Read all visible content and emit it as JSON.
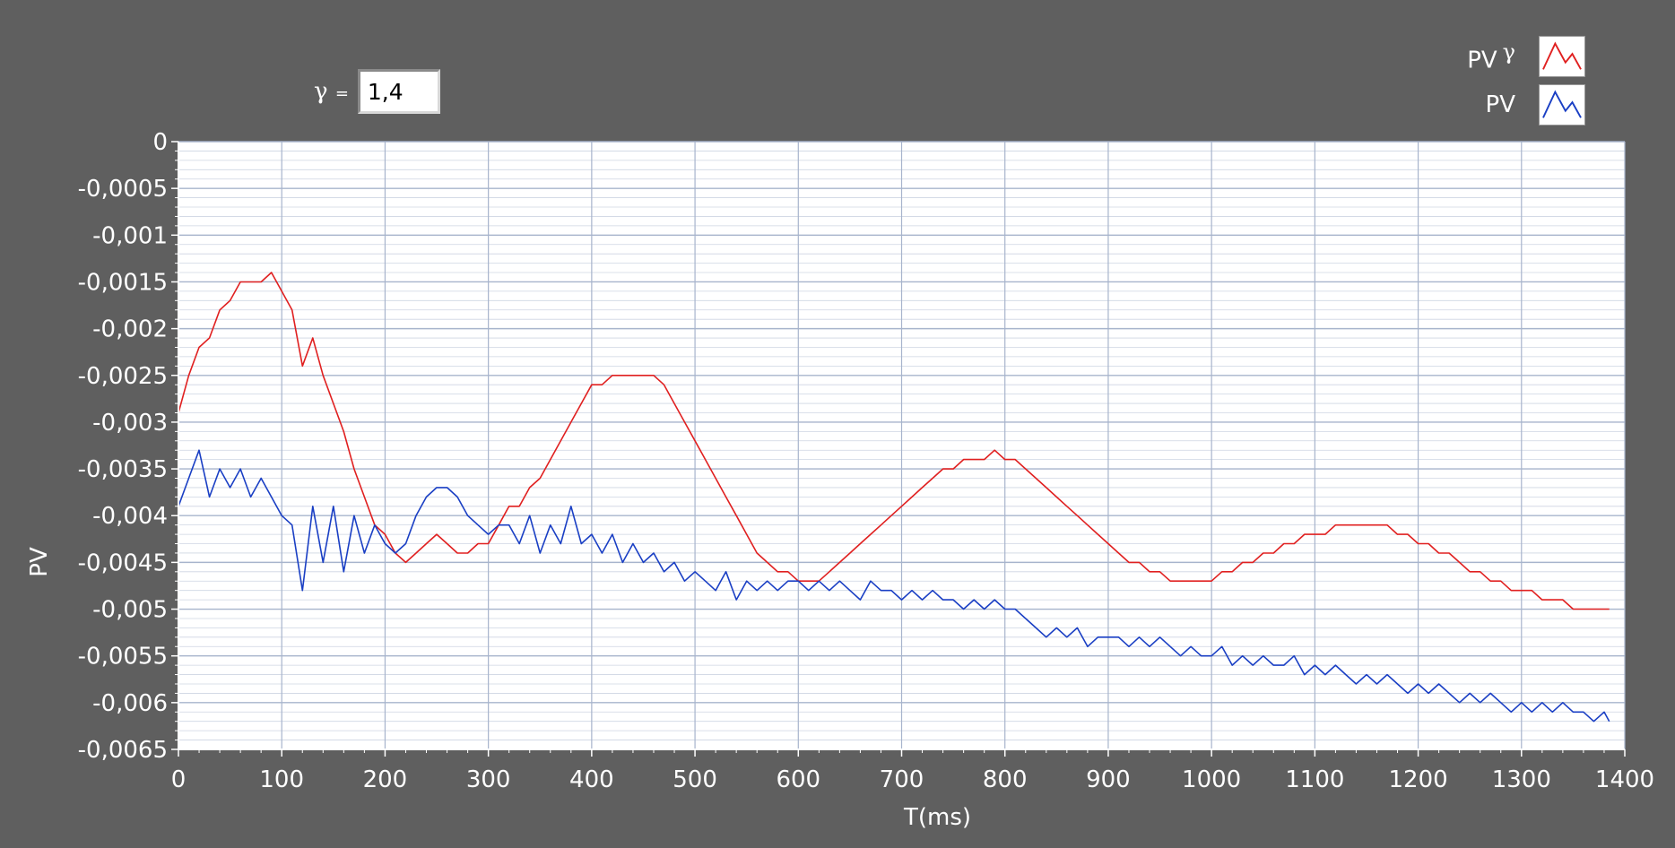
{
  "gamma_control": {
    "symbol": "γ",
    "equals": "=",
    "value": "1,4"
  },
  "colors": {
    "background": "#5f5f5f",
    "plot_bg": "#ffffff",
    "grid": "#a7b4cc",
    "series_pv_gamma": "#e02020",
    "series_pv": "#1a3fc4"
  },
  "chart_data": {
    "type": "line",
    "xlabel": "T(ms)",
    "ylabel": "PV",
    "xlim": [
      0,
      1400
    ],
    "ylim": [
      -0.0065,
      0
    ],
    "x_ticks": [
      0,
      100,
      200,
      300,
      400,
      500,
      600,
      700,
      800,
      900,
      1000,
      1100,
      1200,
      1300,
      1400
    ],
    "x_tick_labels": [
      "0",
      "100",
      "200",
      "300",
      "400",
      "500",
      "600",
      "700",
      "800",
      "900",
      "1000",
      "1100",
      "1200",
      "1300",
      "1400"
    ],
    "y_ticks": [
      0,
      -0.0005,
      -0.001,
      -0.0015,
      -0.002,
      -0.0025,
      -0.003,
      -0.0035,
      -0.004,
      -0.0045,
      -0.005,
      -0.0055,
      -0.006,
      -0.0065
    ],
    "y_tick_labels": [
      "0",
      "-0,0005",
      "-0,001",
      "-0,0015",
      "-0,002",
      "-0,0025",
      "-0,003",
      "-0,0035",
      "-0,004",
      "-0,0045",
      "-0,005",
      "-0,0055",
      "-0,006",
      "-0,0065"
    ],
    "grid": true,
    "legend_position": "top-right",
    "series": [
      {
        "name": "PV γ",
        "legend_text": "PV",
        "legend_sup": "γ",
        "color": "#e02020",
        "x": [
          0,
          10,
          20,
          30,
          40,
          50,
          60,
          70,
          80,
          90,
          100,
          110,
          120,
          130,
          140,
          150,
          160,
          170,
          180,
          190,
          200,
          210,
          220,
          230,
          240,
          250,
          260,
          270,
          280,
          290,
          300,
          310,
          320,
          330,
          340,
          350,
          360,
          370,
          380,
          390,
          400,
          410,
          420,
          430,
          440,
          450,
          460,
          470,
          480,
          490,
          500,
          510,
          520,
          530,
          540,
          550,
          560,
          570,
          580,
          590,
          600,
          610,
          620,
          630,
          640,
          650,
          660,
          670,
          680,
          690,
          700,
          710,
          720,
          730,
          740,
          750,
          760,
          770,
          780,
          790,
          800,
          810,
          820,
          830,
          840,
          850,
          860,
          870,
          880,
          890,
          900,
          910,
          920,
          930,
          940,
          950,
          960,
          970,
          980,
          990,
          1000,
          1010,
          1020,
          1030,
          1040,
          1050,
          1060,
          1070,
          1080,
          1090,
          1100,
          1110,
          1120,
          1130,
          1140,
          1150,
          1160,
          1170,
          1180,
          1190,
          1200,
          1210,
          1220,
          1230,
          1240,
          1250,
          1260,
          1270,
          1280,
          1290,
          1300,
          1310,
          1320,
          1330,
          1340,
          1350,
          1360,
          1370,
          1380,
          1385
        ],
        "y": [
          -0.0029,
          -0.0025,
          -0.0022,
          -0.0021,
          -0.0018,
          -0.0017,
          -0.0015,
          -0.0015,
          -0.0015,
          -0.0014,
          -0.0016,
          -0.0018,
          -0.0024,
          -0.0021,
          -0.0025,
          -0.0028,
          -0.0031,
          -0.0035,
          -0.0038,
          -0.0041,
          -0.0042,
          -0.0044,
          -0.0045,
          -0.0044,
          -0.0043,
          -0.0042,
          -0.0043,
          -0.0044,
          -0.0044,
          -0.0043,
          -0.0043,
          -0.0041,
          -0.0039,
          -0.0039,
          -0.0037,
          -0.0036,
          -0.0034,
          -0.0032,
          -0.003,
          -0.0028,
          -0.0026,
          -0.0026,
          -0.0025,
          -0.0025,
          -0.0025,
          -0.0025,
          -0.0025,
          -0.0026,
          -0.0028,
          -0.003,
          -0.0032,
          -0.0034,
          -0.0036,
          -0.0038,
          -0.004,
          -0.0042,
          -0.0044,
          -0.0045,
          -0.0046,
          -0.0046,
          -0.0047,
          -0.0047,
          -0.0047,
          -0.0046,
          -0.0045,
          -0.0044,
          -0.0043,
          -0.0042,
          -0.0041,
          -0.004,
          -0.0039,
          -0.0038,
          -0.0037,
          -0.0036,
          -0.0035,
          -0.0035,
          -0.0034,
          -0.0034,
          -0.0034,
          -0.0033,
          -0.0034,
          -0.0034,
          -0.0035,
          -0.0036,
          -0.0037,
          -0.0038,
          -0.0039,
          -0.004,
          -0.0041,
          -0.0042,
          -0.0043,
          -0.0044,
          -0.0045,
          -0.0045,
          -0.0046,
          -0.0046,
          -0.0047,
          -0.0047,
          -0.0047,
          -0.0047,
          -0.0047,
          -0.0046,
          -0.0046,
          -0.0045,
          -0.0045,
          -0.0044,
          -0.0044,
          -0.0043,
          -0.0043,
          -0.0042,
          -0.0042,
          -0.0042,
          -0.0041,
          -0.0041,
          -0.0041,
          -0.0041,
          -0.0041,
          -0.0041,
          -0.0042,
          -0.0042,
          -0.0043,
          -0.0043,
          -0.0044,
          -0.0044,
          -0.0045,
          -0.0046,
          -0.0046,
          -0.0047,
          -0.0047,
          -0.0048,
          -0.0048,
          -0.0048,
          -0.0049,
          -0.0049,
          -0.0049,
          -0.005,
          -0.005,
          -0.005,
          -0.005,
          -0.005
        ]
      },
      {
        "name": "PV",
        "legend_text": "PV",
        "color": "#1a3fc4",
        "x": [
          0,
          10,
          20,
          30,
          40,
          50,
          60,
          70,
          80,
          90,
          100,
          110,
          120,
          130,
          140,
          150,
          160,
          170,
          180,
          190,
          200,
          210,
          220,
          230,
          240,
          250,
          260,
          270,
          280,
          290,
          300,
          310,
          320,
          330,
          340,
          350,
          360,
          370,
          380,
          390,
          400,
          410,
          420,
          430,
          440,
          450,
          460,
          470,
          480,
          490,
          500,
          510,
          520,
          530,
          540,
          550,
          560,
          570,
          580,
          590,
          600,
          610,
          620,
          630,
          640,
          650,
          660,
          670,
          680,
          690,
          700,
          710,
          720,
          730,
          740,
          750,
          760,
          770,
          780,
          790,
          800,
          810,
          820,
          830,
          840,
          850,
          860,
          870,
          880,
          890,
          900,
          910,
          920,
          930,
          940,
          950,
          960,
          970,
          980,
          990,
          1000,
          1010,
          1020,
          1030,
          1040,
          1050,
          1060,
          1070,
          1080,
          1090,
          1100,
          1110,
          1120,
          1130,
          1140,
          1150,
          1160,
          1170,
          1180,
          1190,
          1200,
          1210,
          1220,
          1230,
          1240,
          1250,
          1260,
          1270,
          1280,
          1290,
          1300,
          1310,
          1320,
          1330,
          1340,
          1350,
          1360,
          1370,
          1380,
          1385
        ],
        "y": [
          -0.0039,
          -0.0036,
          -0.0033,
          -0.0038,
          -0.0035,
          -0.0037,
          -0.0035,
          -0.0038,
          -0.0036,
          -0.0038,
          -0.004,
          -0.0041,
          -0.0048,
          -0.0039,
          -0.0045,
          -0.0039,
          -0.0046,
          -0.004,
          -0.0044,
          -0.0041,
          -0.0043,
          -0.0044,
          -0.0043,
          -0.004,
          -0.0038,
          -0.0037,
          -0.0037,
          -0.0038,
          -0.004,
          -0.0041,
          -0.0042,
          -0.0041,
          -0.0041,
          -0.0043,
          -0.004,
          -0.0044,
          -0.0041,
          -0.0043,
          -0.0039,
          -0.0043,
          -0.0042,
          -0.0044,
          -0.0042,
          -0.0045,
          -0.0043,
          -0.0045,
          -0.0044,
          -0.0046,
          -0.0045,
          -0.0047,
          -0.0046,
          -0.0047,
          -0.0048,
          -0.0046,
          -0.0049,
          -0.0047,
          -0.0048,
          -0.0047,
          -0.0048,
          -0.0047,
          -0.0047,
          -0.0048,
          -0.0047,
          -0.0048,
          -0.0047,
          -0.0048,
          -0.0049,
          -0.0047,
          -0.0048,
          -0.0048,
          -0.0049,
          -0.0048,
          -0.0049,
          -0.0048,
          -0.0049,
          -0.0049,
          -0.005,
          -0.0049,
          -0.005,
          -0.0049,
          -0.005,
          -0.005,
          -0.0051,
          -0.0052,
          -0.0053,
          -0.0052,
          -0.0053,
          -0.0052,
          -0.0054,
          -0.0053,
          -0.0053,
          -0.0053,
          -0.0054,
          -0.0053,
          -0.0054,
          -0.0053,
          -0.0054,
          -0.0055,
          -0.0054,
          -0.0055,
          -0.0055,
          -0.0054,
          -0.0056,
          -0.0055,
          -0.0056,
          -0.0055,
          -0.0056,
          -0.0056,
          -0.0055,
          -0.0057,
          -0.0056,
          -0.0057,
          -0.0056,
          -0.0057,
          -0.0058,
          -0.0057,
          -0.0058,
          -0.0057,
          -0.0058,
          -0.0059,
          -0.0058,
          -0.0059,
          -0.0058,
          -0.0059,
          -0.006,
          -0.0059,
          -0.006,
          -0.0059,
          -0.006,
          -0.0061,
          -0.006,
          -0.0061,
          -0.006,
          -0.0061,
          -0.006,
          -0.0061,
          -0.0061,
          -0.0062,
          -0.0061,
          -0.0062
        ]
      }
    ]
  }
}
